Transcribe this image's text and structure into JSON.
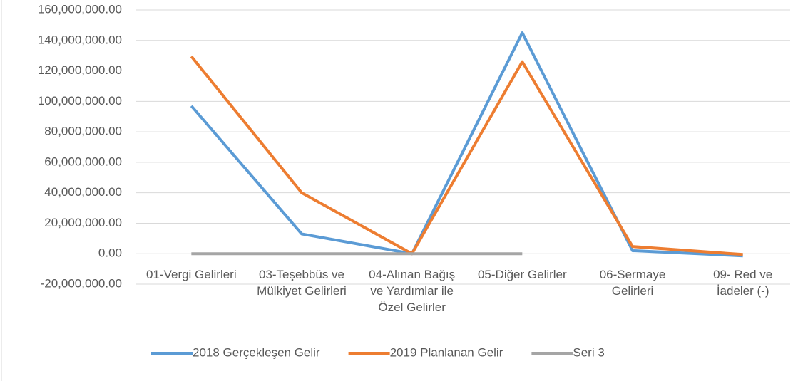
{
  "chart_data": {
    "type": "line",
    "categories": [
      "01-Vergi Gelirleri",
      "03-Teşebbüs ve Mülkiyet Gelirleri",
      "04-Alınan Bağış ve Yardımlar ile Özel Gelirler",
      "05-Diğer Gelirler",
      "06-Sermaye Gelirleri",
      "09- Red ve İadeler (-)"
    ],
    "series": [
      {
        "name": "2018 Gerçekleşen Gelir",
        "color": "#5b9bd5",
        "values": [
          97000000,
          13000000,
          0,
          145000000,
          2000000,
          -1400000
        ]
      },
      {
        "name": "2019 Planlanan Gelir",
        "color": "#ed7d31",
        "values": [
          129500000,
          40000000,
          0,
          126000000,
          4700000,
          -500000
        ]
      },
      {
        "name": "Seri 3",
        "color": "#a5a5a5",
        "values": [
          0,
          0,
          0,
          0,
          null,
          null
        ]
      }
    ],
    "ylim": [
      -20000000,
      160000000
    ],
    "yticks": [
      {
        "value": -20000000,
        "label": "-20,000,000.00"
      },
      {
        "value": 0,
        "label": "0.00"
      },
      {
        "value": 20000000,
        "label": "20,000,000.00"
      },
      {
        "value": 40000000,
        "label": "40,000,000.00"
      },
      {
        "value": 60000000,
        "label": "60,000,000.00"
      },
      {
        "value": 80000000,
        "label": "80,000,000.00"
      },
      {
        "value": 100000000,
        "label": "100,000,000.00"
      },
      {
        "value": 120000000,
        "label": "120,000,000.00"
      },
      {
        "value": 140000000,
        "label": "140,000,000.00"
      },
      {
        "value": 160000000,
        "label": "160,000,000.00"
      }
    ],
    "grid": true,
    "legend": "bottom"
  }
}
